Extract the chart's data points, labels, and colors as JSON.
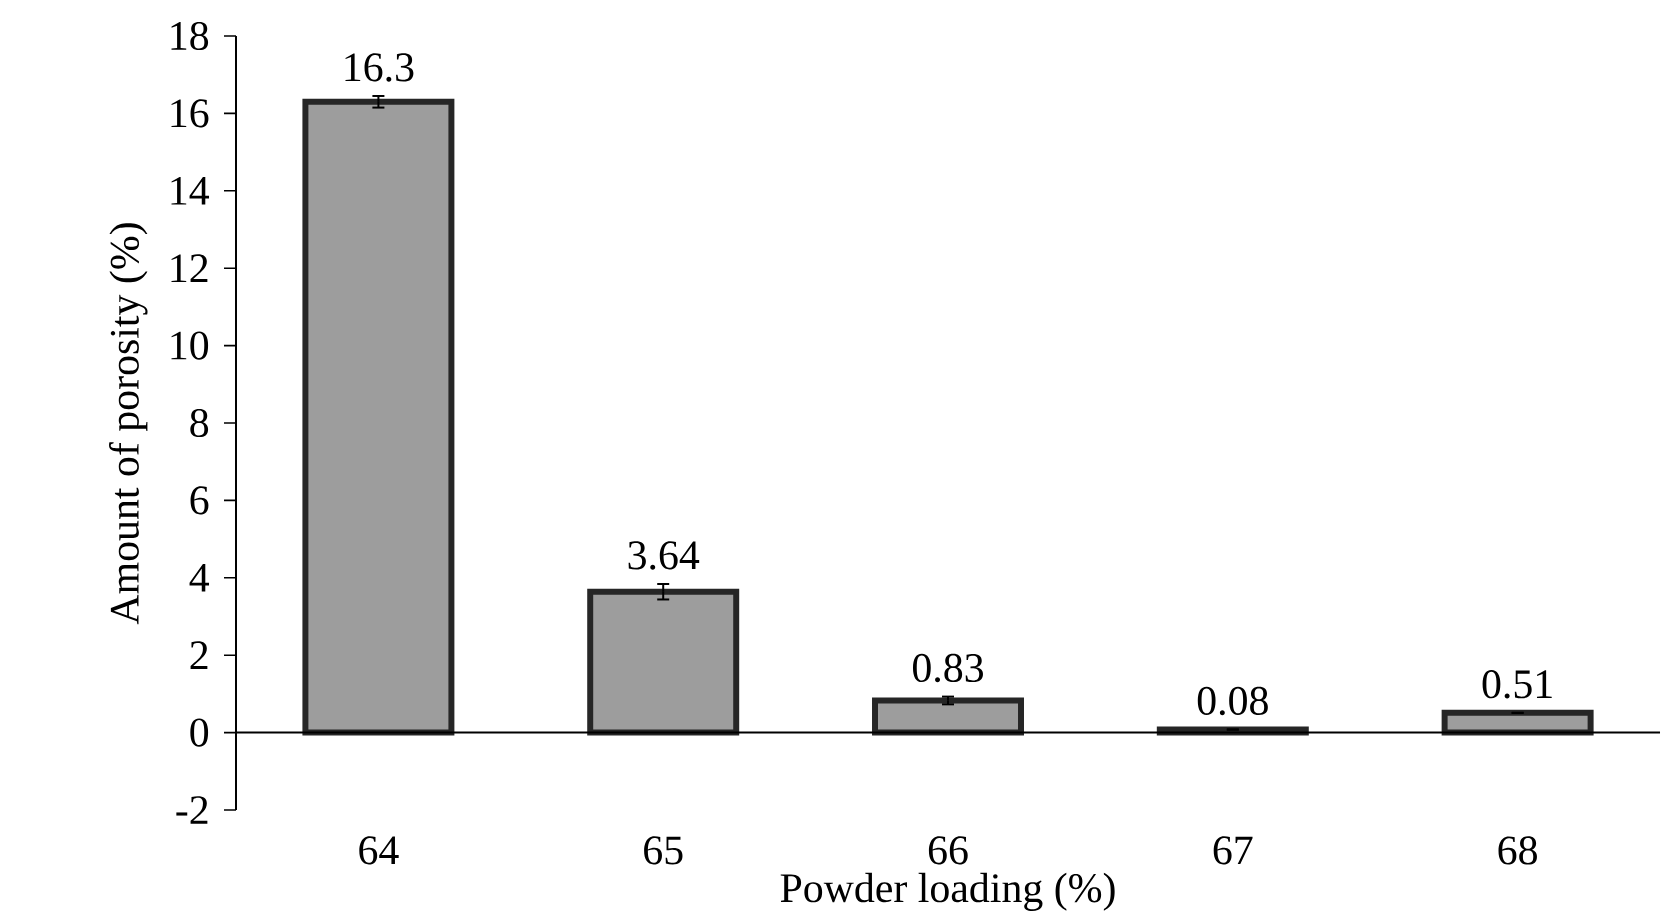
{
  "chart_data": {
    "type": "bar",
    "xlabel": "Powder loading (%)",
    "ylabel": "Amount of porosity (%)",
    "categories": [
      "64",
      "65",
      "66",
      "67",
      "68"
    ],
    "values": [
      16.3,
      3.64,
      0.83,
      0.08,
      0.51
    ],
    "errors": [
      0.15,
      0.2,
      0.1,
      null,
      null
    ],
    "color": "#262626",
    "ylim": [
      -2,
      18
    ],
    "yticks": [
      -2,
      0,
      2,
      4,
      6,
      8,
      10,
      12,
      14,
      16,
      18
    ],
    "data_labels": true,
    "grid": false
  }
}
